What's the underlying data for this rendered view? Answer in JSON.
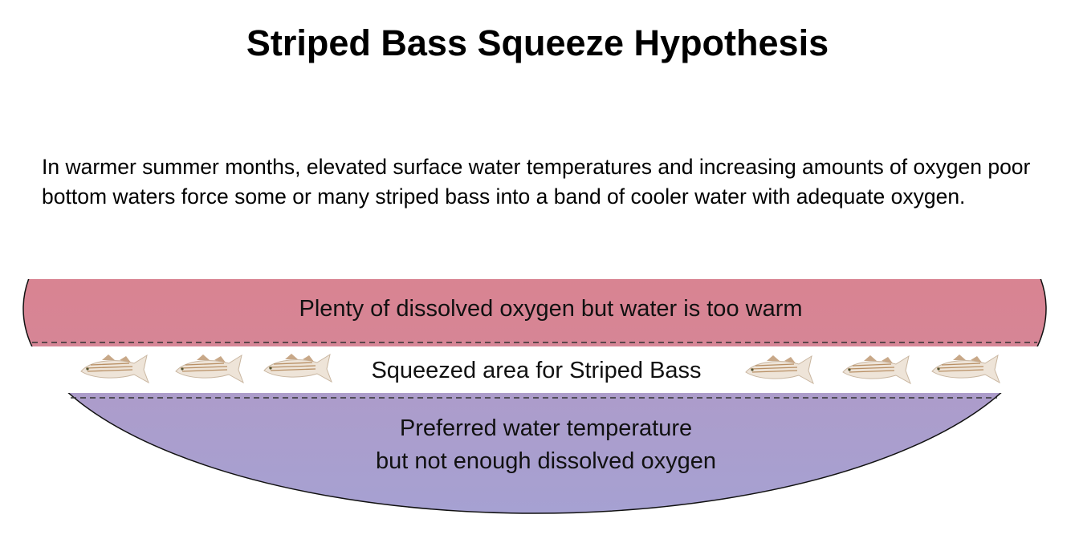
{
  "title": "Striped Bass Squeeze Hypothesis",
  "description": "In warmer summer months, elevated surface water temperatures and increasing amounts of oxygen poor bottom waters force some or many striped bass into a band of cooler water with adequate oxygen.",
  "zones": {
    "top": {
      "label": "Plenty of dissolved oxygen but water is too warm",
      "color_top": "#e07f87",
      "color_bottom": "#cf8aa0"
    },
    "middle": {
      "label": "Squeezed area for Striped Bass",
      "fish_icon": "striped-bass-icon",
      "fish_count": 6
    },
    "bottom": {
      "line1": "Preferred water temperature",
      "line2": "but not enough dissolved oxygen",
      "color_top": "#bc90b8",
      "color_bottom": "#a6a1d2"
    }
  }
}
